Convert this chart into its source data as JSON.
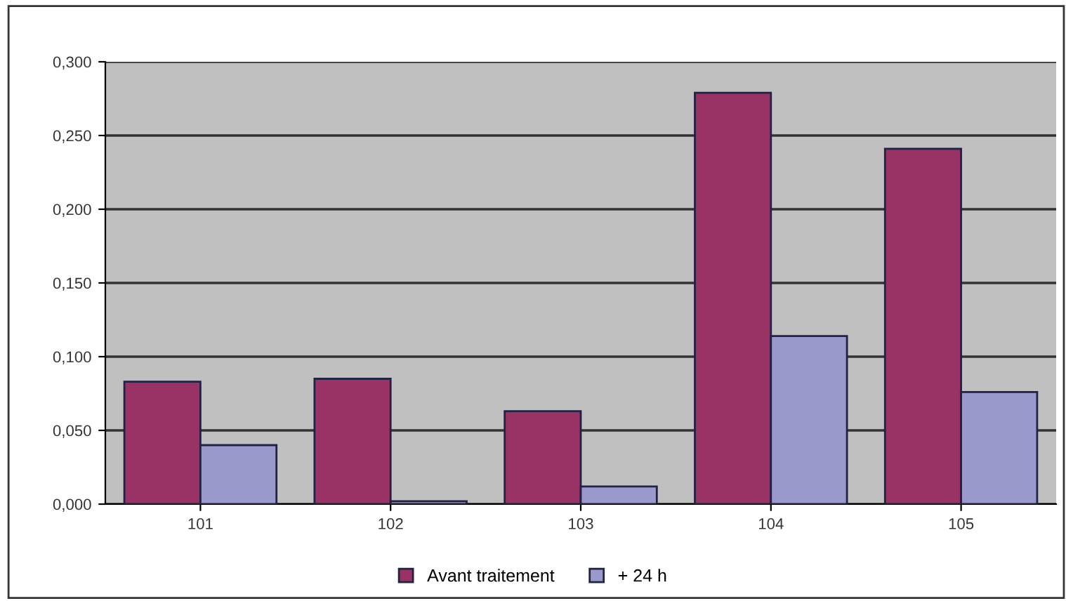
{
  "chart_data": {
    "type": "bar",
    "categories": [
      "101",
      "102",
      "103",
      "104",
      "105"
    ],
    "series": [
      {
        "name": "Avant traitement",
        "color": "#993366",
        "values": [
          0.083,
          0.085,
          0.063,
          0.279,
          0.241
        ]
      },
      {
        "name": "+ 24 h",
        "color": "#9999cc",
        "values": [
          0.04,
          0.002,
          0.012,
          0.114,
          0.076
        ]
      }
    ],
    "ylim": [
      0,
      0.3
    ],
    "yticks": [
      {
        "value": 0,
        "label": "0,000"
      },
      {
        "value": 0.05,
        "label": "0,050"
      },
      {
        "value": 0.1,
        "label": "0,100"
      },
      {
        "value": 0.15,
        "label": "0,150"
      },
      {
        "value": 0.2,
        "label": "0,200"
      },
      {
        "value": 0.25,
        "label": "0,250"
      },
      {
        "value": 0.3,
        "label": "0,300"
      }
    ],
    "grid": "y",
    "legend": "bottom"
  }
}
